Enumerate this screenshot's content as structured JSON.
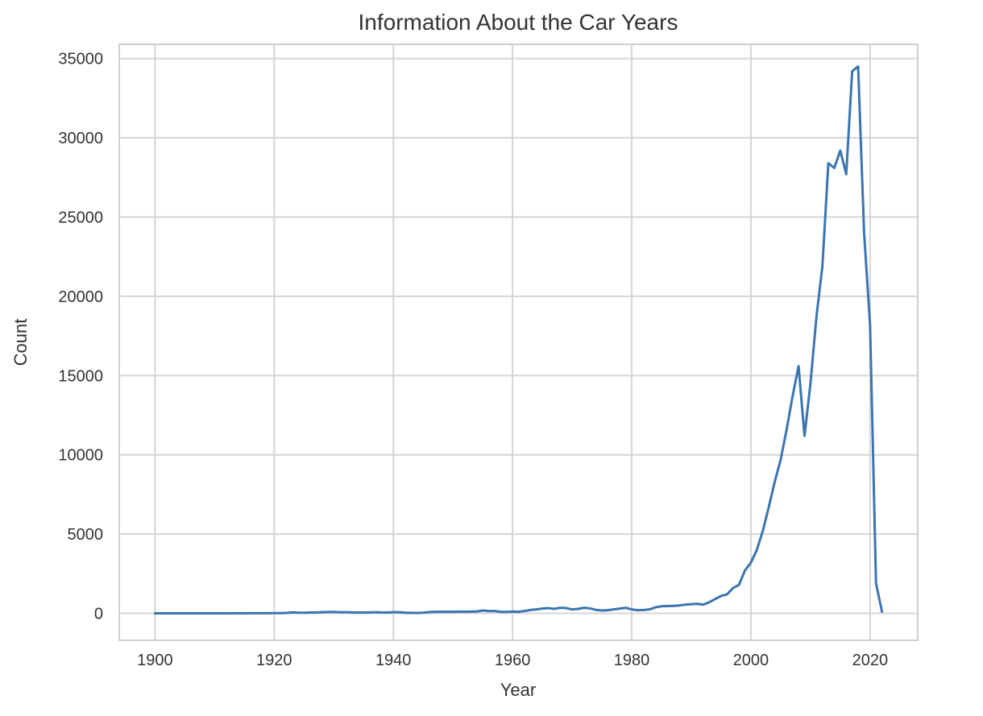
{
  "chart_data": {
    "type": "line",
    "title": "Information About the Car Years",
    "xlabel": "Year",
    "ylabel": "Count",
    "xlim": [
      1894,
      2028
    ],
    "ylim": [
      -1700,
      35900
    ],
    "xticks": [
      1900,
      1920,
      1940,
      1960,
      1980,
      2000,
      2020
    ],
    "yticks": [
      0,
      5000,
      10000,
      15000,
      20000,
      25000,
      30000,
      35000
    ],
    "grid": true,
    "legend": "none",
    "colors": {
      "line": "#3a75b0",
      "grid": "#d5d5d5",
      "frame": "#cfcfcf",
      "text": "#333333"
    },
    "series": [
      {
        "x": [
          1900,
          1901,
          1902,
          1903,
          1904,
          1905,
          1906,
          1907,
          1908,
          1909,
          1910,
          1911,
          1912,
          1913,
          1914,
          1915,
          1916,
          1917,
          1918,
          1919,
          1920,
          1921,
          1922,
          1923,
          1924,
          1925,
          1926,
          1927,
          1928,
          1929,
          1930,
          1931,
          1932,
          1933,
          1934,
          1935,
          1936,
          1937,
          1938,
          1939,
          1940,
          1941,
          1942,
          1943,
          1944,
          1945,
          1946,
          1947,
          1948,
          1949,
          1950,
          1951,
          1952,
          1953,
          1954,
          1955,
          1956,
          1957,
          1958,
          1959,
          1960,
          1961,
          1962,
          1963,
          1964,
          1965,
          1966,
          1967,
          1968,
          1969,
          1970,
          1971,
          1972,
          1973,
          1974,
          1975,
          1976,
          1977,
          1978,
          1979,
          1980,
          1981,
          1982,
          1983,
          1984,
          1985,
          1986,
          1987,
          1988,
          1989,
          1990,
          1991,
          1992,
          1993,
          1994,
          1995,
          1996,
          1997,
          1998,
          1999,
          2000,
          2001,
          2002,
          2003,
          2004,
          2005,
          2006,
          2007,
          2008,
          2009,
          2010,
          2011,
          2012,
          2013,
          2014,
          2015,
          2016,
          2017,
          2018,
          2019,
          2020,
          2021,
          2022
        ],
        "y": [
          5,
          2,
          2,
          3,
          2,
          3,
          2,
          3,
          4,
          3,
          5,
          4,
          5,
          4,
          6,
          5,
          8,
          6,
          8,
          10,
          12,
          18,
          25,
          60,
          45,
          40,
          50,
          55,
          70,
          85,
          90,
          70,
          75,
          60,
          55,
          50,
          60,
          75,
          60,
          55,
          80,
          70,
          40,
          30,
          30,
          40,
          80,
          95,
          100,
          105,
          100,
          110,
          105,
          110,
          120,
          180,
          150,
          150,
          100,
          90,
          110,
          100,
          150,
          210,
          250,
          300,
          330,
          280,
          350,
          330,
          250,
          280,
          350,
          310,
          220,
          180,
          200,
          250,
          300,
          350,
          250,
          200,
          210,
          250,
          380,
          450,
          460,
          470,
          500,
          550,
          580,
          600,
          550,
          700,
          900,
          1100,
          1200,
          1600,
          1800,
          2700,
          3200,
          4000,
          5200,
          6700,
          8300,
          9700,
          11600,
          13700,
          15600,
          11200,
          14500,
          18700,
          21900,
          28400,
          28100,
          29200,
          27700,
          34200,
          34500,
          24000,
          18200,
          1900,
          100
        ]
      }
    ]
  }
}
